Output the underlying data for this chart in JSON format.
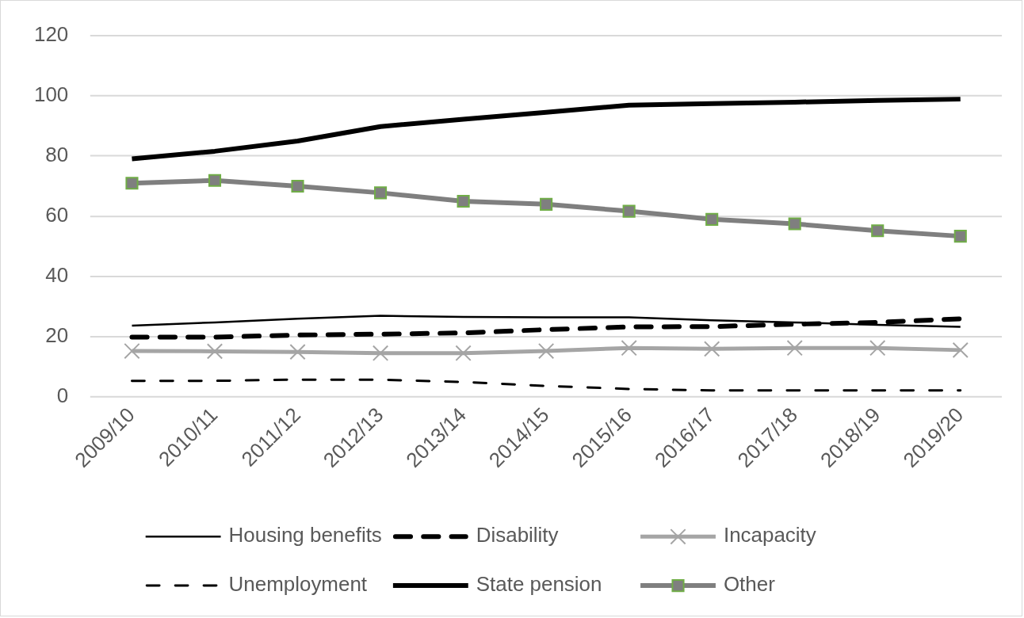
{
  "chart_data": {
    "type": "line",
    "categories": [
      "2009/10",
      "2010/11",
      "2011/12",
      "2012/13",
      "2013/14",
      "2014/15",
      "2015/16",
      "2016/17",
      "2017/18",
      "2018/19",
      "2019/20"
    ],
    "series": [
      {
        "name": "Housing benefits",
        "color": "#000000",
        "line_style": "solid",
        "marker": "none",
        "values": [
          23.7,
          24.8,
          26.0,
          27.0,
          26.6,
          26.5,
          26.5,
          25.5,
          24.8,
          24.0,
          23.3
        ]
      },
      {
        "name": "Disability",
        "color": "#000000",
        "line_style": "dashed",
        "marker": "none",
        "values": [
          19.9,
          19.9,
          20.6,
          20.9,
          21.3,
          22.4,
          23.3,
          23.4,
          24.2,
          24.8,
          26.0
        ]
      },
      {
        "name": "Incapacity",
        "color": "#a5a5a5",
        "line_style": "solid",
        "marker": "cross",
        "values": [
          15.3,
          15.2,
          15.0,
          14.6,
          14.6,
          15.3,
          16.3,
          16.0,
          16.3,
          16.3,
          15.6
        ]
      },
      {
        "name": "Unemployment",
        "color": "#000000",
        "line_style": "dashed",
        "marker": "none",
        "values": [
          5.4,
          5.4,
          5.8,
          5.8,
          5.0,
          3.7,
          2.7,
          2.2,
          2.2,
          2.2,
          2.2
        ]
      },
      {
        "name": "State pension",
        "color": "#000000",
        "line_style": "solid",
        "marker": "none",
        "values": [
          79.1,
          81.6,
          85.0,
          89.8,
          92.2,
          94.5,
          96.9,
          97.4,
          97.9,
          98.5,
          98.9
        ]
      },
      {
        "name": "Other",
        "color": "#7f7f7f",
        "line_style": "solid",
        "marker": "square",
        "values": [
          71.0,
          71.9,
          70.0,
          67.8,
          65.0,
          64.0,
          61.7,
          59.0,
          57.5,
          55.2,
          53.4
        ]
      }
    ],
    "ylim": [
      0,
      120
    ],
    "yticks": [
      0,
      20,
      40,
      60,
      80,
      100,
      120
    ],
    "grid": "y",
    "legend": "bottom"
  }
}
